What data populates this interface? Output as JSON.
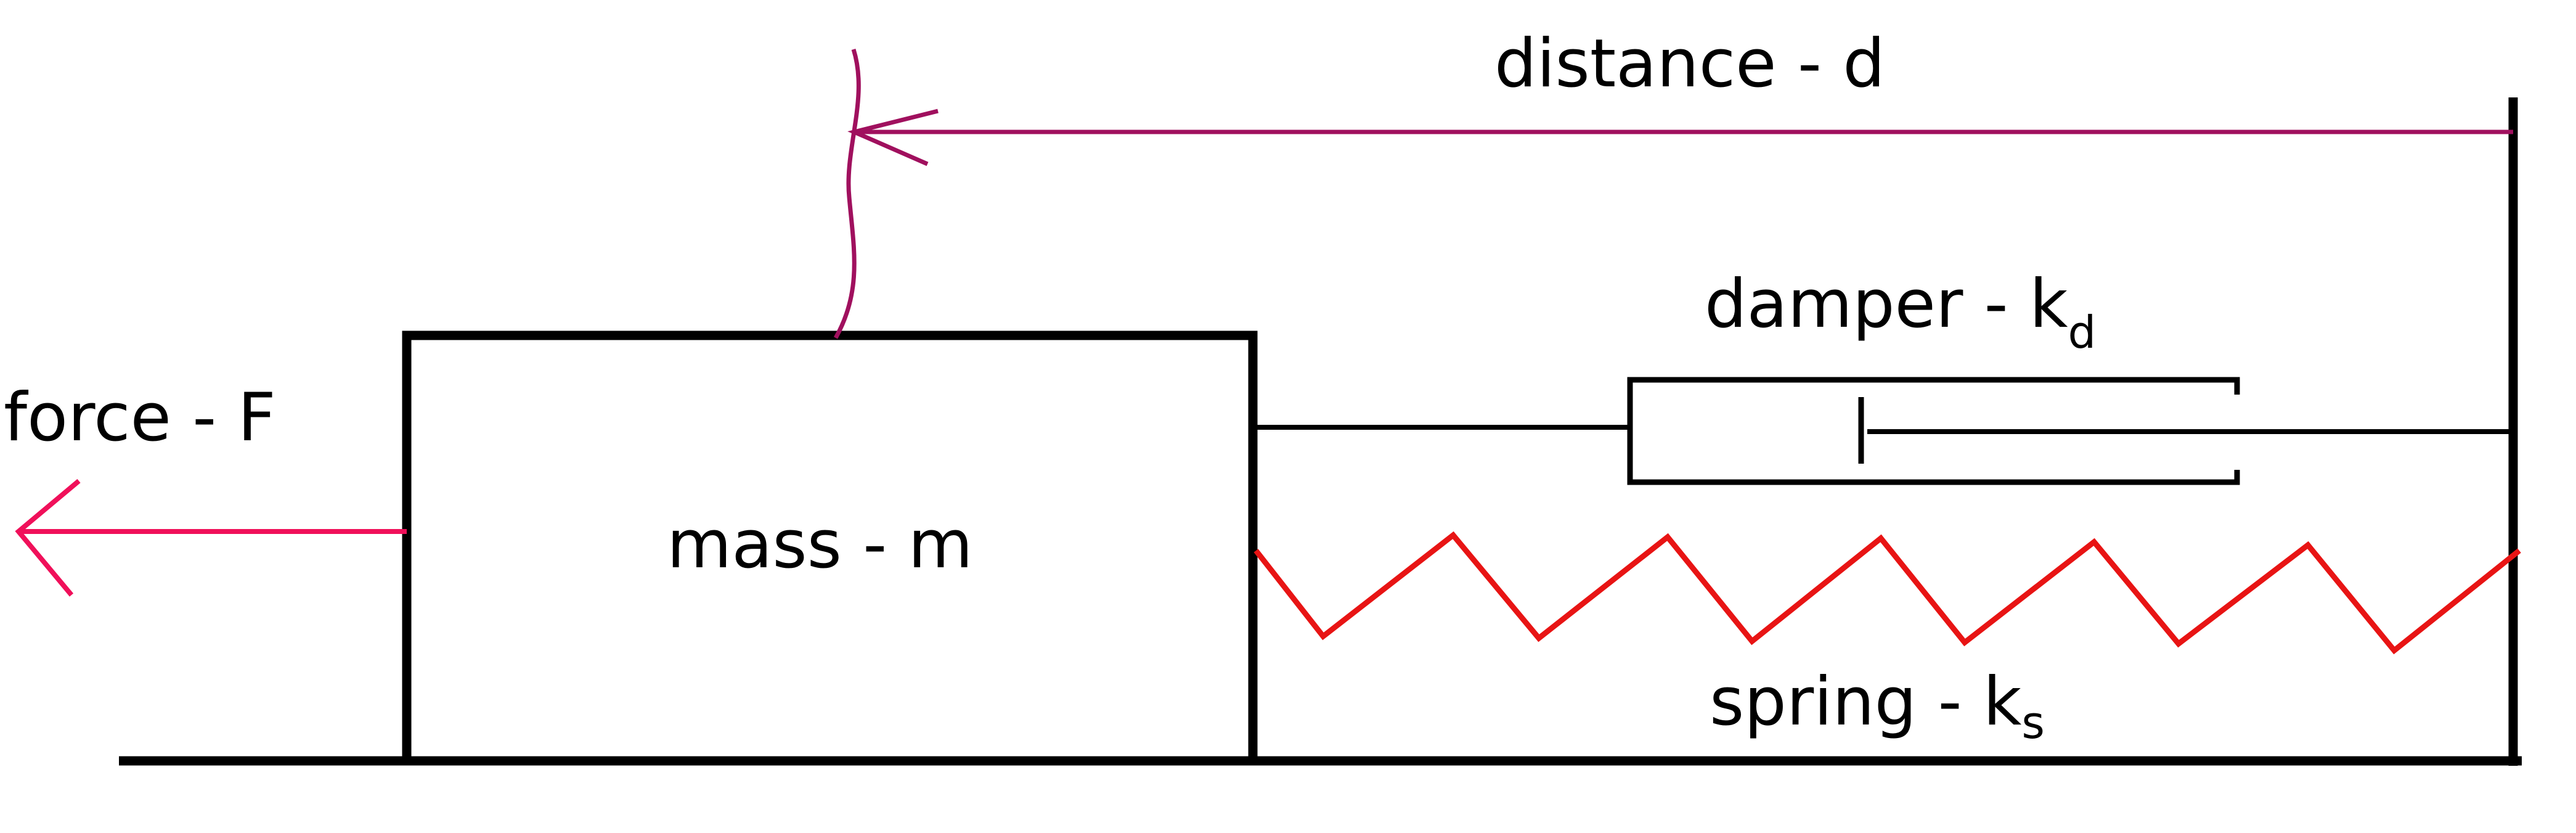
{
  "labels": {
    "distance": "distance  - d",
    "damper": "damper -  k",
    "damper_sub": "d",
    "force": "force - F",
    "mass": "mass - m",
    "spring": "spring - k",
    "spring_sub": "s"
  },
  "colors": {
    "structure": "#000000",
    "distance_arrow": "#a0105e",
    "force_arrow": "#f0105a",
    "spring": "#e81414"
  }
}
